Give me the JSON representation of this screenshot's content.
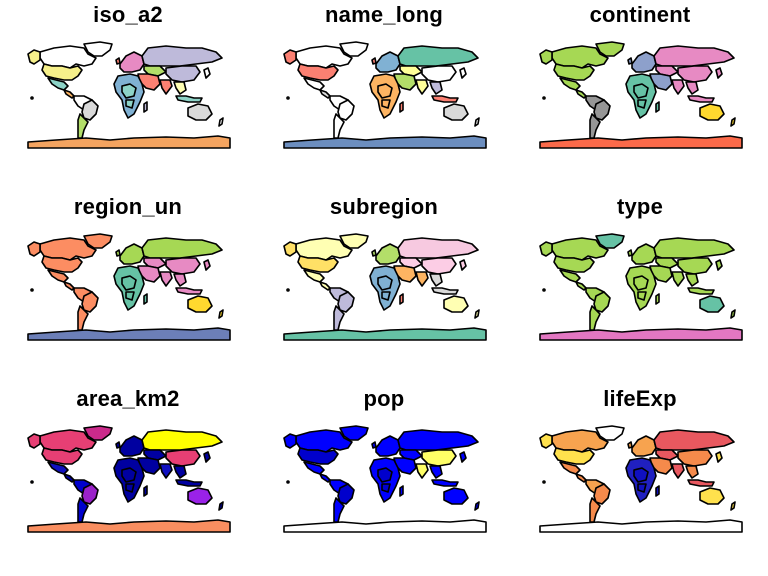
{
  "figure": {
    "panels": [
      {
        "title": "iso_a2",
        "colors": {
          "antarctica": "#F4A460",
          "north_america": "#ffffff",
          "canada": "#ffffff",
          "greenland": "#ffffff",
          "alaska": "#F6F08A",
          "usa": "#F6F08A",
          "mexico": "#8DD3C7",
          "central_america": "#FDB462",
          "south_america": "#ffffff",
          "brazil": "#D9D9D9",
          "argentina": "#B3DE69",
          "europe": "#E78AC3",
          "russia": "#BEBADA",
          "africa": "#80B1D3",
          "middle_east": "#FB8072",
          "central_asia": "#B3DE69",
          "china": "#BEBADA",
          "india": "#FB8072",
          "se_asia": "#FFFFB3",
          "indonesia": "#8DD3C7",
          "australia": "#D9D9D9",
          "japan": "#ffffff",
          "nz": "#ffffff",
          "madagascar": "#BEBADA",
          "uk": "#FB8072",
          "mosaic": "#8DD3C7"
        }
      },
      {
        "title": "name_long",
        "colors": {
          "antarctica": "#6C8EBF",
          "north_america": "#ffffff",
          "canada": "#ffffff",
          "greenland": "#ffffff",
          "alaska": "#FB8072",
          "usa": "#FB8072",
          "mexico": "#ffffff",
          "central_america": "#D9D9D9",
          "south_america": "#ffffff",
          "brazil": "#ffffff",
          "argentina": "#ffffff",
          "europe": "#80B1D3",
          "russia": "#66C2A5",
          "africa": "#FDB462",
          "middle_east": "#B3DE69",
          "central_asia": "#FFFF99",
          "china": "#ffffff",
          "india": "#FFFF99",
          "se_asia": "#BEBADA",
          "indonesia": "#FB8072",
          "australia": "#D9D9D9",
          "japan": "#ffffff",
          "nz": "#ffffff",
          "madagascar": "#FB8072",
          "uk": "#FB8072",
          "mosaic": "#FDB462"
        }
      },
      {
        "title": "continent",
        "colors": {
          "antarctica": "#FB6A4A",
          "north_america": "#A6D854",
          "canada": "#A6D854",
          "greenland": "#A6D854",
          "alaska": "#A6D854",
          "usa": "#A6D854",
          "mexico": "#A6D854",
          "central_america": "#A6D854",
          "south_america": "#969696",
          "brazil": "#969696",
          "argentina": "#969696",
          "europe": "#8DA0CB",
          "russia": "#E78AC3",
          "africa": "#66C2A5",
          "middle_east": "#8DA0CB",
          "central_asia": "#E78AC3",
          "china": "#E78AC3",
          "india": "#E78AC3",
          "se_asia": "#E78AC3",
          "indonesia": "#E78AC3",
          "australia": "#FFD92F",
          "japan": "#E78AC3",
          "nz": "#FFD92F",
          "madagascar": "#66C2A5",
          "uk": "#8DA0CB",
          "mosaic": "#66C2A5"
        }
      },
      {
        "title": "region_un",
        "colors": {
          "antarctica": "#6C7FB8",
          "north_america": "#FC8D62",
          "canada": "#FC8D62",
          "greenland": "#FC8D62",
          "alaska": "#FC8D62",
          "usa": "#FC8D62",
          "mexico": "#FC8D62",
          "central_america": "#FC8D62",
          "south_america": "#FC8D62",
          "brazil": "#FC8D62",
          "argentina": "#FC8D62",
          "europe": "#A6D854",
          "russia": "#A6D854",
          "africa": "#66C2A5",
          "middle_east": "#E78AC3",
          "central_asia": "#E78AC3",
          "china": "#E78AC3",
          "india": "#E78AC3",
          "se_asia": "#E78AC3",
          "indonesia": "#E78AC3",
          "australia": "#FFD92F",
          "japan": "#E78AC3",
          "nz": "#FFD92F",
          "madagascar": "#66C2A5",
          "uk": "#A6D854",
          "mosaic": "#66C2A5"
        }
      },
      {
        "title": "subregion",
        "colors": {
          "antarctica": "#66C2A5",
          "north_america": "#FFFFB3",
          "canada": "#FFFFB3",
          "greenland": "#FFFFB3",
          "alaska": "#FFE066",
          "usa": "#FFE066",
          "mexico": "#FFFFB3",
          "central_america": "#FFFFB3",
          "south_america": "#BEBADA",
          "brazil": "#BEBADA",
          "argentina": "#BEBADA",
          "europe": "#B3DE69",
          "russia": "#F7C9E0",
          "africa": "#80B1D3",
          "middle_east": "#FDB462",
          "central_asia": "#FCCDE5",
          "china": "#FCCDE5",
          "india": "#FDB462",
          "se_asia": "#D9D9D9",
          "indonesia": "#D9D9D9",
          "australia": "#FFFFB3",
          "japan": "#FCCDE5",
          "nz": "#FFFFB3",
          "madagascar": "#FB8072",
          "uk": "#B3DE69",
          "mosaic": "#80B1D3"
        }
      },
      {
        "title": "type",
        "colors": {
          "antarctica": "#E377C2",
          "north_america": "#A6D854",
          "canada": "#A6D854",
          "greenland": "#66C2A5",
          "alaska": "#A6D854",
          "usa": "#A6D854",
          "mexico": "#A6D854",
          "central_america": "#A6D854",
          "south_america": "#A6D854",
          "brazil": "#A6D854",
          "argentina": "#A6D854",
          "europe": "#A6D854",
          "russia": "#A6D854",
          "africa": "#A6D854",
          "middle_east": "#A6D854",
          "central_asia": "#A6D854",
          "china": "#A6D854",
          "india": "#A6D854",
          "se_asia": "#A6D854",
          "indonesia": "#A6D854",
          "australia": "#66C2A5",
          "japan": "#A6D854",
          "nz": "#A6D854",
          "madagascar": "#A6D854",
          "uk": "#A6D854",
          "mosaic": "#A6D854"
        }
      },
      {
        "title": "area_km2",
        "colors": {
          "antarctica": "#F98E60",
          "north_america": "#E73F74",
          "canada": "#E73F74",
          "greenland": "#CB2A8B",
          "alaska": "#E73F74",
          "usa": "#E73F74",
          "mexico": "#1010C0",
          "central_america": "#0000A0",
          "south_america": "#0000CC",
          "brazil": "#9A22C8",
          "argentina": "#0000CC",
          "europe": "#0000A0",
          "russia": "#FFFF00",
          "africa": "#0000A0",
          "middle_east": "#0000A0",
          "central_asia": "#0000A0",
          "china": "#E73F74",
          "india": "#1010C0",
          "se_asia": "#0000A0",
          "indonesia": "#0000A0",
          "australia": "#9A22E8",
          "japan": "#0000A0",
          "nz": "#0000A0",
          "madagascar": "#0000A0",
          "uk": "#0000A0",
          "mosaic": "#0000A0"
        }
      },
      {
        "title": "pop",
        "colors": {
          "antarctica": "#ffffff",
          "north_america": "#0000FF",
          "canada": "#0000FF",
          "greenland": "#0000FF",
          "alaska": "#0000FF",
          "usa": "#0000CC",
          "mexico": "#0000FF",
          "central_america": "#0000FF",
          "south_america": "#0000FF",
          "brazil": "#0000CC",
          "argentina": "#0000FF",
          "europe": "#0000FF",
          "russia": "#0000FF",
          "africa": "#0000FF",
          "middle_east": "#0000FF",
          "central_asia": "#0000FF",
          "china": "#FFFF66",
          "india": "#FFFF66",
          "se_asia": "#0000FF",
          "indonesia": "#0000FF",
          "australia": "#0000FF",
          "japan": "#0000FF",
          "nz": "#0000FF",
          "madagascar": "#0000FF",
          "uk": "#0000FF",
          "mosaic": "#0000CC"
        }
      },
      {
        "title": "lifeExp",
        "colors": {
          "antarctica": "#ffffff",
          "north_america": "#F7A34F",
          "canada": "#F7A34F",
          "greenland": "#ffffff",
          "alaska": "#FFE14D",
          "usa": "#FFE14D",
          "mexico": "#F58A4B",
          "central_america": "#F58A4B",
          "south_america": "#F7A34F",
          "brazil": "#F58A4B",
          "argentina": "#F58A4B",
          "europe": "#F7A34F",
          "russia": "#E8585F",
          "africa": "#2020C0",
          "middle_east": "#F58A4B",
          "central_asia": "#E8585F",
          "china": "#F58A4B",
          "india": "#E8585F",
          "se_asia": "#F58A4B",
          "indonesia": "#E8585F",
          "australia": "#FFE14D",
          "japan": "#FFE14D",
          "nz": "#FFE14D",
          "madagascar": "#1010C0",
          "uk": "#F7A34F",
          "mosaic": "#1010C0"
        }
      }
    ]
  }
}
